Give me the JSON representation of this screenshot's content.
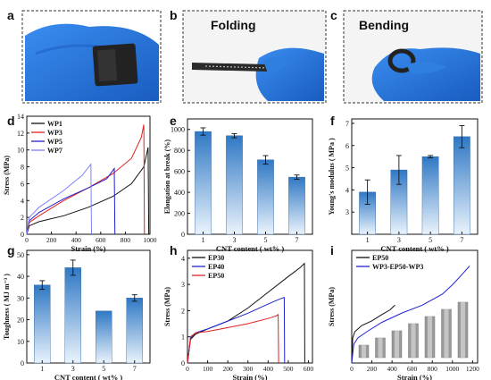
{
  "panel_letters": [
    "a",
    "b",
    "c",
    "d",
    "e",
    "f",
    "g",
    "h",
    "i"
  ],
  "photo_titles": {
    "b": "Folding",
    "c": "Bending"
  },
  "colors": {
    "glove": "#2f7fe0",
    "glove_dark": "#1b5fbf",
    "bar_top": "#2f78c4",
    "bar_bottom": "#e8f2fb",
    "black": "#111111",
    "red": "#e22020",
    "blue": "#1f22d0",
    "lightblue": "#8080ff",
    "photo_border": "#333333"
  },
  "chart_data": [
    {
      "panel": "d",
      "type": "line",
      "xlabel": "Strain (%)",
      "ylabel": "Stress (MPa)",
      "xlim": [
        0,
        1000
      ],
      "ylim": [
        0,
        14
      ],
      "xticks": [
        0,
        200,
        400,
        600,
        800,
        1000
      ],
      "yticks": [
        0,
        2,
        4,
        6,
        8,
        10,
        12,
        14
      ],
      "legend_position": "top-left",
      "series": [
        {
          "name": "WP1",
          "color": "#111111",
          "x": [
            0,
            20,
            100,
            300,
            500,
            700,
            850,
            950,
            985,
            990
          ],
          "y": [
            0,
            1.0,
            1.5,
            2.2,
            3.2,
            4.5,
            6.0,
            8.0,
            10.3,
            0
          ]
        },
        {
          "name": "WP3",
          "color": "#e22020",
          "x": [
            0,
            20,
            100,
            300,
            500,
            700,
            850,
            930,
            950,
            955
          ],
          "y": [
            0,
            1.4,
            2.2,
            4.0,
            5.5,
            7.2,
            9.0,
            11.5,
            13.0,
            0
          ]
        },
        {
          "name": "WP5",
          "color": "#1f22d0",
          "x": [
            0,
            20,
            100,
            300,
            500,
            650,
            710,
            715
          ],
          "y": [
            0,
            1.6,
            2.6,
            4.2,
            5.5,
            6.6,
            7.8,
            0
          ]
        },
        {
          "name": "WP7",
          "color": "#8080ff",
          "x": [
            0,
            20,
            100,
            300,
            450,
            520,
            525
          ],
          "y": [
            0,
            2.0,
            3.2,
            5.2,
            7.0,
            8.3,
            0
          ]
        }
      ]
    },
    {
      "panel": "e",
      "type": "bar",
      "xlabel": "CNT content ( wt% )",
      "ylabel": "Elongation at break (%)",
      "categories": [
        "1",
        "3",
        "5",
        "7"
      ],
      "values": [
        980,
        940,
        710,
        545
      ],
      "errors": [
        35,
        20,
        40,
        20
      ],
      "ylim": [
        0,
        1100
      ],
      "yticks": [
        0,
        200,
        400,
        600,
        800,
        1000
      ]
    },
    {
      "panel": "f",
      "type": "bar",
      "xlabel": "CNT content ( wt% )",
      "ylabel": "Young's modulus ( MPa )",
      "categories": [
        "1",
        "3",
        "5",
        "7"
      ],
      "values": [
        3.9,
        4.9,
        5.5,
        6.4
      ],
      "errors": [
        0.55,
        0.65,
        0.05,
        0.5
      ],
      "ylim": [
        2,
        7.2
      ],
      "yticks": [
        3,
        4,
        5,
        6,
        7
      ]
    },
    {
      "panel": "g",
      "type": "bar",
      "xlabel": "CNT content ( wt% )",
      "ylabel": "Toughness ( MJ m⁻³ )",
      "categories": [
        "1",
        "3",
        "5",
        "7"
      ],
      "values": [
        36,
        44,
        24,
        30
      ],
      "errors": [
        2,
        3.5,
        0,
        1.5
      ],
      "ylim": [
        0,
        52
      ],
      "yticks": [
        0,
        10,
        20,
        30,
        40,
        50
      ]
    },
    {
      "panel": "h",
      "type": "line",
      "xlabel": "Strain (%)",
      "ylabel": "Stress (MPa)",
      "xlim": [
        0,
        620
      ],
      "ylim": [
        0,
        4.3
      ],
      "xticks": [
        0,
        100,
        200,
        300,
        400,
        500,
        600
      ],
      "yticks": [
        0,
        1,
        2,
        3,
        4
      ],
      "legend_position": "top-left",
      "series": [
        {
          "name": "EP30",
          "color": "#111111",
          "x": [
            0,
            15,
            40,
            100,
            200,
            300,
            400,
            500,
            560,
            580,
            582
          ],
          "y": [
            0,
            0.9,
            1.1,
            1.3,
            1.6,
            2.1,
            2.7,
            3.3,
            3.65,
            3.8,
            0
          ]
        },
        {
          "name": "EP40",
          "color": "#1f22d0",
          "x": [
            0,
            15,
            40,
            100,
            200,
            300,
            400,
            460,
            480,
            482
          ],
          "y": [
            0,
            0.95,
            1.15,
            1.3,
            1.6,
            1.9,
            2.25,
            2.45,
            2.5,
            0
          ]
        },
        {
          "name": "EP50",
          "color": "#e22020",
          "x": [
            0,
            15,
            40,
            100,
            200,
            300,
            400,
            440,
            450,
            452
          ],
          "y": [
            0,
            1.0,
            1.15,
            1.2,
            1.35,
            1.5,
            1.7,
            1.8,
            1.85,
            0
          ]
        }
      ]
    },
    {
      "panel": "i",
      "type": "line",
      "xlabel": "Strain (%)",
      "ylabel": "Stress (MPa)",
      "xlim": [
        0,
        1250
      ],
      "ylim": [
        0,
        3.6
      ],
      "xticks": [
        0,
        200,
        400,
        600,
        800,
        1000,
        1200
      ],
      "legend_position": "top-left",
      "series": [
        {
          "name": "EP50",
          "color": "#111111",
          "x": [
            0,
            10,
            30,
            100,
            200,
            300,
            380,
            430
          ],
          "y": [
            0,
            0.8,
            1.0,
            1.2,
            1.35,
            1.55,
            1.7,
            1.85
          ]
        },
        {
          "name": "WP3-EP50-WP3",
          "color": "#1f22d0",
          "x": [
            0,
            20,
            60,
            150,
            300,
            500,
            700,
            900,
            1000,
            1100,
            1170
          ],
          "y": [
            0,
            0.6,
            0.8,
            1.0,
            1.3,
            1.6,
            1.85,
            2.2,
            2.5,
            2.85,
            3.1
          ]
        }
      ]
    }
  ]
}
